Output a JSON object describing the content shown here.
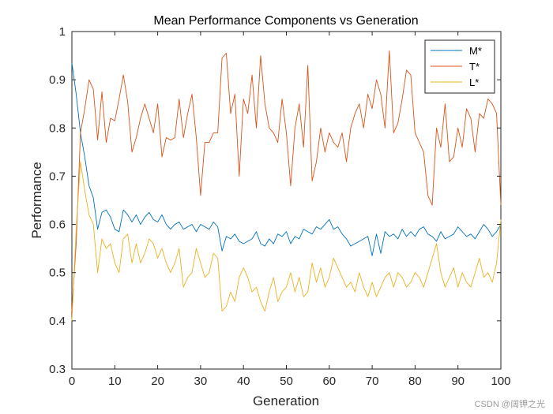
{
  "watermark": "CSDN @阔钾之光",
  "chart_data": {
    "type": "line",
    "title": "Mean Performance Components vs Generation",
    "xlabel": "Generation",
    "ylabel": "Performance",
    "xlim": [
      0,
      100
    ],
    "ylim": [
      0.3,
      1
    ],
    "xticks": [
      0,
      10,
      20,
      30,
      40,
      50,
      60,
      70,
      80,
      90,
      100
    ],
    "xtick_labels": [
      "0",
      "10",
      "20",
      "30",
      "40",
      "50",
      "60",
      "70",
      "80",
      "90",
      "100"
    ],
    "yticks": [
      0.3,
      0.4,
      0.5,
      0.6,
      0.7,
      0.8,
      0.9,
      1
    ],
    "ytick_labels": [
      "0.3",
      "0.4",
      "0.5",
      "0.6",
      "0.7",
      "0.8",
      "0.9",
      "1"
    ],
    "grid": false,
    "legend_position": "top-right",
    "series": [
      {
        "name": "M*",
        "color": "#0072BD",
        "values": [
          0.935,
          0.87,
          0.79,
          0.74,
          0.68,
          0.655,
          0.59,
          0.625,
          0.63,
          0.615,
          0.59,
          0.585,
          0.63,
          0.62,
          0.605,
          0.62,
          0.6,
          0.615,
          0.625,
          0.61,
          0.605,
          0.62,
          0.6,
          0.59,
          0.6,
          0.605,
          0.59,
          0.595,
          0.6,
          0.585,
          0.6,
          0.595,
          0.59,
          0.605,
          0.595,
          0.545,
          0.575,
          0.57,
          0.58,
          0.565,
          0.56,
          0.565,
          0.57,
          0.585,
          0.56,
          0.555,
          0.57,
          0.56,
          0.58,
          0.575,
          0.585,
          0.56,
          0.575,
          0.57,
          0.59,
          0.585,
          0.58,
          0.595,
          0.59,
          0.6,
          0.61,
          0.59,
          0.595,
          0.58,
          0.57,
          0.555,
          0.56,
          0.565,
          0.57,
          0.575,
          0.535,
          0.58,
          0.54,
          0.585,
          0.575,
          0.58,
          0.57,
          0.59,
          0.575,
          0.585,
          0.575,
          0.59,
          0.595,
          0.58,
          0.575,
          0.565,
          0.585,
          0.57,
          0.575,
          0.58,
          0.595,
          0.585,
          0.575,
          0.58,
          0.57,
          0.585,
          0.6,
          0.59,
          0.575,
          0.585,
          0.6
        ]
      },
      {
        "name": "T*",
        "color": "#D95319",
        "values": [
          0.42,
          0.56,
          0.79,
          0.84,
          0.9,
          0.88,
          0.775,
          0.875,
          0.77,
          0.82,
          0.815,
          0.86,
          0.91,
          0.855,
          0.75,
          0.78,
          0.82,
          0.85,
          0.82,
          0.79,
          0.85,
          0.74,
          0.78,
          0.775,
          0.78,
          0.86,
          0.78,
          0.83,
          0.87,
          0.78,
          0.66,
          0.77,
          0.77,
          0.79,
          0.79,
          0.945,
          0.955,
          0.83,
          0.87,
          0.7,
          0.86,
          0.83,
          0.91,
          0.8,
          0.95,
          0.85,
          0.8,
          0.79,
          0.77,
          0.86,
          0.79,
          0.68,
          0.8,
          0.85,
          0.76,
          0.93,
          0.69,
          0.73,
          0.8,
          0.75,
          0.79,
          0.77,
          0.76,
          0.79,
          0.73,
          0.8,
          0.83,
          0.85,
          0.8,
          0.87,
          0.84,
          0.9,
          0.87,
          0.8,
          0.96,
          0.79,
          0.81,
          0.86,
          0.92,
          0.91,
          0.79,
          0.77,
          0.75,
          0.66,
          0.64,
          0.8,
          0.76,
          0.85,
          0.73,
          0.74,
          0.8,
          0.76,
          0.84,
          0.82,
          0.75,
          0.83,
          0.82,
          0.86,
          0.85,
          0.83,
          0.64
        ]
      },
      {
        "name": "L*",
        "color": "#EDB120",
        "values": [
          0.4,
          0.59,
          0.73,
          0.67,
          0.62,
          0.6,
          0.5,
          0.57,
          0.55,
          0.56,
          0.52,
          0.5,
          0.57,
          0.58,
          0.52,
          0.56,
          0.52,
          0.54,
          0.57,
          0.56,
          0.53,
          0.55,
          0.52,
          0.5,
          0.52,
          0.55,
          0.47,
          0.49,
          0.5,
          0.55,
          0.52,
          0.49,
          0.5,
          0.54,
          0.53,
          0.42,
          0.43,
          0.46,
          0.44,
          0.49,
          0.51,
          0.49,
          0.46,
          0.47,
          0.44,
          0.42,
          0.46,
          0.49,
          0.44,
          0.46,
          0.47,
          0.5,
          0.46,
          0.49,
          0.45,
          0.46,
          0.52,
          0.48,
          0.51,
          0.47,
          0.49,
          0.53,
          0.51,
          0.49,
          0.47,
          0.48,
          0.46,
          0.5,
          0.47,
          0.45,
          0.48,
          0.45,
          0.47,
          0.49,
          0.5,
          0.47,
          0.5,
          0.49,
          0.47,
          0.48,
          0.5,
          0.49,
          0.47,
          0.5,
          0.53,
          0.56,
          0.5,
          0.47,
          0.49,
          0.51,
          0.47,
          0.5,
          0.48,
          0.47,
          0.5,
          0.53,
          0.49,
          0.5,
          0.48,
          0.52,
          0.61
        ]
      }
    ]
  }
}
